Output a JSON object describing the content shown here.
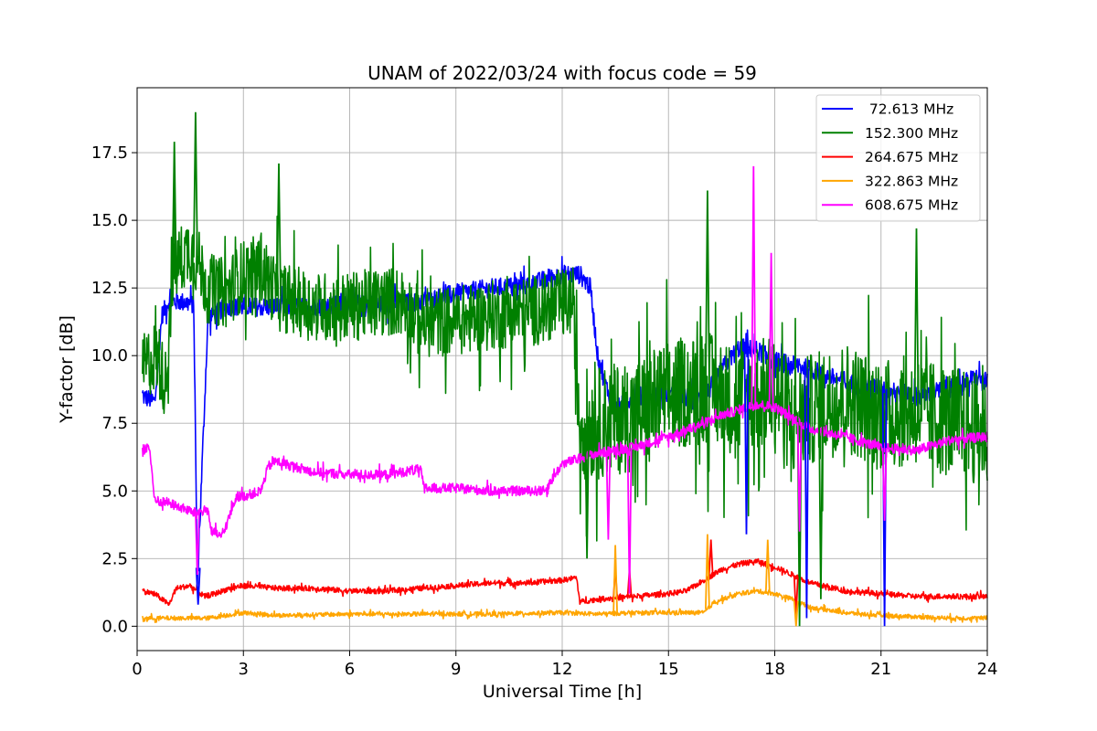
{
  "chart_data": {
    "type": "line",
    "title": "UNAM of 2022/03/24 with focus code = 59",
    "xlabel": "Universal Time [h]",
    "ylabel": "Y-factor [dB]",
    "xlim": [
      0,
      24
    ],
    "ylim": [
      -0.9,
      19.9
    ],
    "xticks": [
      0,
      3,
      6,
      9,
      12,
      15,
      18,
      21,
      24
    ],
    "xtick_labels": [
      "0",
      "3",
      "6",
      "9",
      "12",
      "15",
      "18",
      "21",
      "24"
    ],
    "yticks": [
      0,
      2.5,
      5,
      7.5,
      10,
      12.5,
      15,
      17.5
    ],
    "ytick_labels": [
      "0.0",
      "2.5",
      "5.0",
      "7.5",
      "10.0",
      "12.5",
      "15.0",
      "17.5"
    ],
    "grid": true,
    "legend_position": "top-right",
    "series": [
      {
        "name": " 72.613 MHz",
        "color": "#0000ff",
        "noise": 0.35,
        "x": [
          0.15,
          0.5,
          0.7,
          0.9,
          1.2,
          1.6,
          1.7,
          2.0,
          2.5,
          3.0,
          4.0,
          5.0,
          6.0,
          7.0,
          8.0,
          9.0,
          10.0,
          11.0,
          12.0,
          12.5,
          12.8,
          13.0,
          13.2,
          13.5,
          14.0,
          15.0,
          16.0,
          16.5,
          17.0,
          17.5,
          18.0,
          19.0,
          20.0,
          21.0,
          22.0,
          23.0,
          23.7,
          24.0
        ],
        "y": [
          8.5,
          8.3,
          11.5,
          12.0,
          12.0,
          11.9,
          1.5,
          11.4,
          11.8,
          11.8,
          11.8,
          11.8,
          11.9,
          11.9,
          12.0,
          12.3,
          12.5,
          12.6,
          13.0,
          13.0,
          12.5,
          10.0,
          9.0,
          8.0,
          8.5,
          8.5,
          8.4,
          9.5,
          10.3,
          10.2,
          9.8,
          9.5,
          9.0,
          8.8,
          8.5,
          8.8,
          9.2,
          9.0
        ]
      },
      {
        "name": "152.300 MHz",
        "color": "#008000",
        "noise": 1.3,
        "x": [
          0.15,
          0.5,
          0.8,
          1.0,
          1.2,
          1.5,
          1.7,
          2.0,
          2.5,
          3.0,
          3.5,
          4.0,
          5.0,
          6.0,
          7.0,
          7.5,
          8.0,
          9.0,
          10.0,
          11.0,
          12.0,
          12.3,
          12.5,
          13.0,
          14.0,
          15.0,
          16.0,
          17.0,
          17.5,
          18.0,
          18.5,
          19.0,
          20.0,
          21.0,
          22.0,
          23.0,
          24.0
        ],
        "y": [
          9.5,
          10.0,
          9.0,
          13.0,
          13.5,
          14.0,
          13.5,
          12.5,
          12.3,
          13.0,
          13.2,
          12.2,
          11.8,
          11.8,
          12.0,
          12.0,
          11.2,
          11.3,
          11.5,
          11.6,
          11.9,
          12.0,
          7.5,
          7.5,
          7.8,
          8.5,
          8.8,
          8.3,
          8.5,
          8.8,
          7.5,
          8.0,
          8.5,
          7.8,
          8.0,
          7.5,
          7.2
        ]
      },
      {
        "name": "264.675 MHz",
        "color": "#ff0000",
        "noise": 0.1,
        "x": [
          0.15,
          0.5,
          0.9,
          1.1,
          1.5,
          1.9,
          2.2,
          2.6,
          3.0,
          4.0,
          5.0,
          6.0,
          7.0,
          8.0,
          9.0,
          10.0,
          11.0,
          12.0,
          12.4,
          12.5,
          13.0,
          14.0,
          15.0,
          15.5,
          16.0,
          16.5,
          17.0,
          17.5,
          18.0,
          18.5,
          19.0,
          20.0,
          21.0,
          22.0,
          23.0,
          24.0
        ],
        "y": [
          1.3,
          1.2,
          0.8,
          1.4,
          1.5,
          1.1,
          1.2,
          1.4,
          1.5,
          1.4,
          1.4,
          1.3,
          1.3,
          1.4,
          1.5,
          1.6,
          1.6,
          1.7,
          1.8,
          0.9,
          1.0,
          1.1,
          1.2,
          1.3,
          1.7,
          2.1,
          2.3,
          2.4,
          2.2,
          1.9,
          1.6,
          1.3,
          1.2,
          1.1,
          1.1,
          1.1
        ]
      },
      {
        "name": "322.863 MHz",
        "color": "#ffa500",
        "noise": 0.08,
        "x": [
          0.15,
          1.0,
          2.0,
          2.5,
          3.0,
          4.0,
          6.0,
          8.0,
          10.0,
          12.0,
          13.0,
          14.0,
          15.0,
          16.0,
          16.3,
          17.0,
          17.5,
          18.0,
          18.5,
          19.0,
          20.0,
          21.0,
          22.0,
          23.0,
          24.0
        ],
        "y": [
          0.3,
          0.3,
          0.3,
          0.4,
          0.5,
          0.4,
          0.45,
          0.45,
          0.45,
          0.5,
          0.45,
          0.5,
          0.5,
          0.5,
          0.9,
          1.2,
          1.3,
          1.2,
          1.0,
          0.7,
          0.5,
          0.4,
          0.35,
          0.3,
          0.3
        ]
      },
      {
        "name": "608.675 MHz",
        "color": "#ff00ff",
        "noise": 0.18,
        "x": [
          0.15,
          0.35,
          0.5,
          0.8,
          1.2,
          1.6,
          2.0,
          2.1,
          2.4,
          2.8,
          3.0,
          3.5,
          3.7,
          3.9,
          5.0,
          6.0,
          7.0,
          8.0,
          8.1,
          9.0,
          10.0,
          11.0,
          11.5,
          12.0,
          13.0,
          14.0,
          15.0,
          16.0,
          16.5,
          17.0,
          17.5,
          18.0,
          18.5,
          19.0,
          20.0,
          21.0,
          22.0,
          23.0,
          24.0
        ],
        "y": [
          6.6,
          6.6,
          4.6,
          4.6,
          4.4,
          4.2,
          4.3,
          3.5,
          3.3,
          4.8,
          4.8,
          5.0,
          5.9,
          6.1,
          5.7,
          5.6,
          5.6,
          5.8,
          5.1,
          5.1,
          5.0,
          5.0,
          5.0,
          6.0,
          6.4,
          6.6,
          7.0,
          7.5,
          7.8,
          8.0,
          8.2,
          8.1,
          7.7,
          7.3,
          7.0,
          6.6,
          6.5,
          6.9,
          7.0
        ]
      }
    ],
    "spikes": [
      {
        "series": 0,
        "x": 1.72,
        "y": 0.8
      },
      {
        "series": 0,
        "x": 17.2,
        "y": 3.4
      },
      {
        "series": 0,
        "x": 18.9,
        "y": 0.3
      },
      {
        "series": 0,
        "x": 21.1,
        "y": 0.0
      },
      {
        "series": 1,
        "x": 1.65,
        "y": 19.0
      },
      {
        "series": 1,
        "x": 1.05,
        "y": 17.9
      },
      {
        "series": 1,
        "x": 4.0,
        "y": 17.1
      },
      {
        "series": 1,
        "x": 16.1,
        "y": 16.1
      },
      {
        "series": 1,
        "x": 22.0,
        "y": 14.7
      },
      {
        "series": 1,
        "x": 12.7,
        "y": 2.5
      },
      {
        "series": 1,
        "x": 18.7,
        "y": 0.0
      },
      {
        "series": 1,
        "x": 19.3,
        "y": 1.0
      },
      {
        "series": 2,
        "x": 13.5,
        "y": 2.2
      },
      {
        "series": 2,
        "x": 13.9,
        "y": 2.1
      },
      {
        "series": 2,
        "x": 16.2,
        "y": 3.2
      },
      {
        "series": 2,
        "x": 18.6,
        "y": 0.4
      },
      {
        "series": 3,
        "x": 13.5,
        "y": 3.0
      },
      {
        "series": 3,
        "x": 16.1,
        "y": 3.4
      },
      {
        "series": 3,
        "x": 17.8,
        "y": 3.2
      },
      {
        "series": 3,
        "x": 18.6,
        "y": 0.0
      },
      {
        "series": 4,
        "x": 17.4,
        "y": 17.0
      },
      {
        "series": 4,
        "x": 17.9,
        "y": 13.8
      },
      {
        "series": 4,
        "x": 1.7,
        "y": 1.9
      },
      {
        "series": 4,
        "x": 13.3,
        "y": 3.2
      },
      {
        "series": 4,
        "x": 13.9,
        "y": 1.2
      },
      {
        "series": 4,
        "x": 21.1,
        "y": 3.9
      },
      {
        "series": 4,
        "x": 18.7,
        "y": 3.5
      }
    ]
  }
}
